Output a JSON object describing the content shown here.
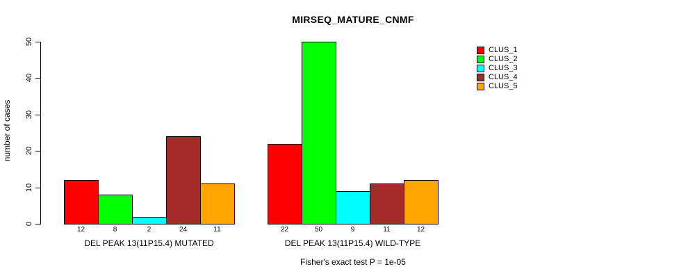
{
  "chart_data": {
    "type": "bar",
    "title": "MIRSEQ_MATURE_CNMF",
    "ylabel": "number of cases",
    "xlabel": "",
    "ylim": [
      0,
      50
    ],
    "yticks": [
      0,
      10,
      20,
      30,
      40,
      50
    ],
    "grid": false,
    "bar_value_labels": true,
    "legend_position": "top-right",
    "categories": [
      "DEL PEAK 13(11P15.4) MUTATED",
      "DEL PEAK 13(11P15.4) WILD-TYPE"
    ],
    "series": [
      {
        "name": "CLUS_1",
        "color": "#FF0000",
        "values": [
          12,
          22
        ]
      },
      {
        "name": "CLUS_2",
        "color": "#00FF00",
        "values": [
          8,
          50
        ]
      },
      {
        "name": "CLUS_3",
        "color": "#00FFFF",
        "values": [
          2,
          9
        ]
      },
      {
        "name": "CLUS_4",
        "color": "#A52A2A",
        "values": [
          24,
          11
        ]
      },
      {
        "name": "CLUS_5",
        "color": "#FFA500",
        "values": [
          11,
          12
        ]
      }
    ],
    "annotation": "Fisher's exact test P = 1e-05",
    "axis_color": "#000000",
    "bar_border_color": "#000000",
    "background_color": "#FFFFFF"
  }
}
